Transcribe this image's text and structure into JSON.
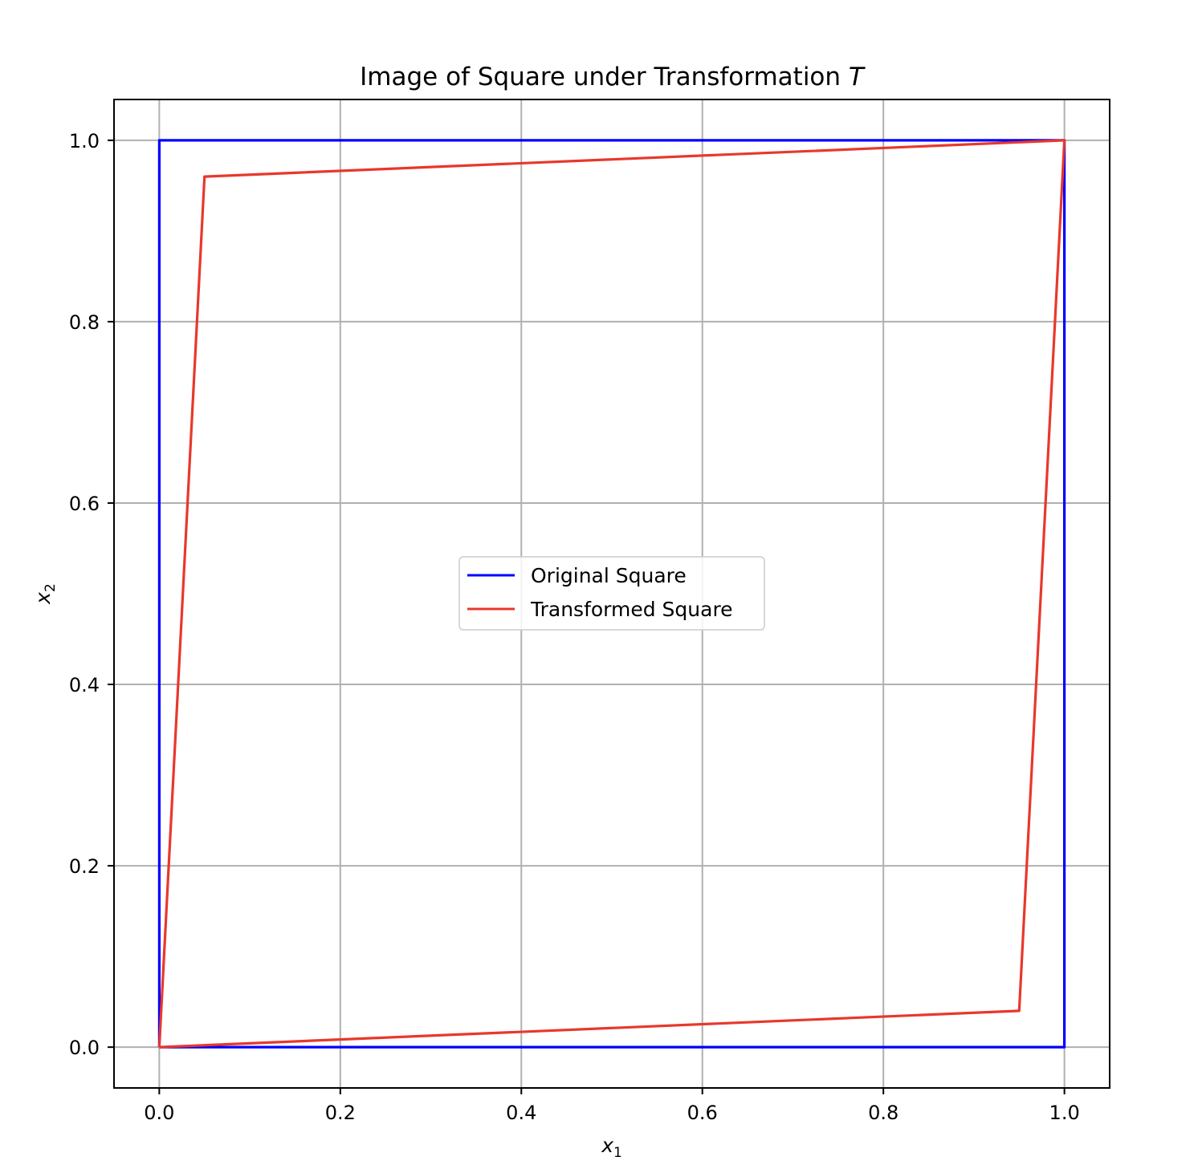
{
  "chart_data": {
    "type": "line",
    "title": "Image of Square under Transformation",
    "title_symbol": "T",
    "xlabel": "x",
    "xlabel_sub": "1",
    "ylabel": "x",
    "ylabel_sub": "2",
    "xlim": [
      -0.05,
      1.05
    ],
    "ylim": [
      -0.045,
      1.045
    ],
    "xticks": [
      "0.0",
      "0.2",
      "0.4",
      "0.6",
      "0.8",
      "1.0"
    ],
    "yticks": [
      "0.0",
      "0.2",
      "0.4",
      "0.6",
      "0.8",
      "1.0"
    ],
    "grid": true,
    "legend_position": "center",
    "series": [
      {
        "name": "Original Square",
        "color": "#0000ff",
        "x": [
          0,
          1,
          1,
          0,
          0
        ],
        "y": [
          0,
          0,
          1,
          1,
          0
        ]
      },
      {
        "name": "Transformed Square",
        "color": "#e8382c",
        "x": [
          0,
          0.95,
          1.0,
          0.05,
          0
        ],
        "y": [
          0,
          0.04,
          1.0,
          0.96,
          0
        ]
      }
    ]
  }
}
